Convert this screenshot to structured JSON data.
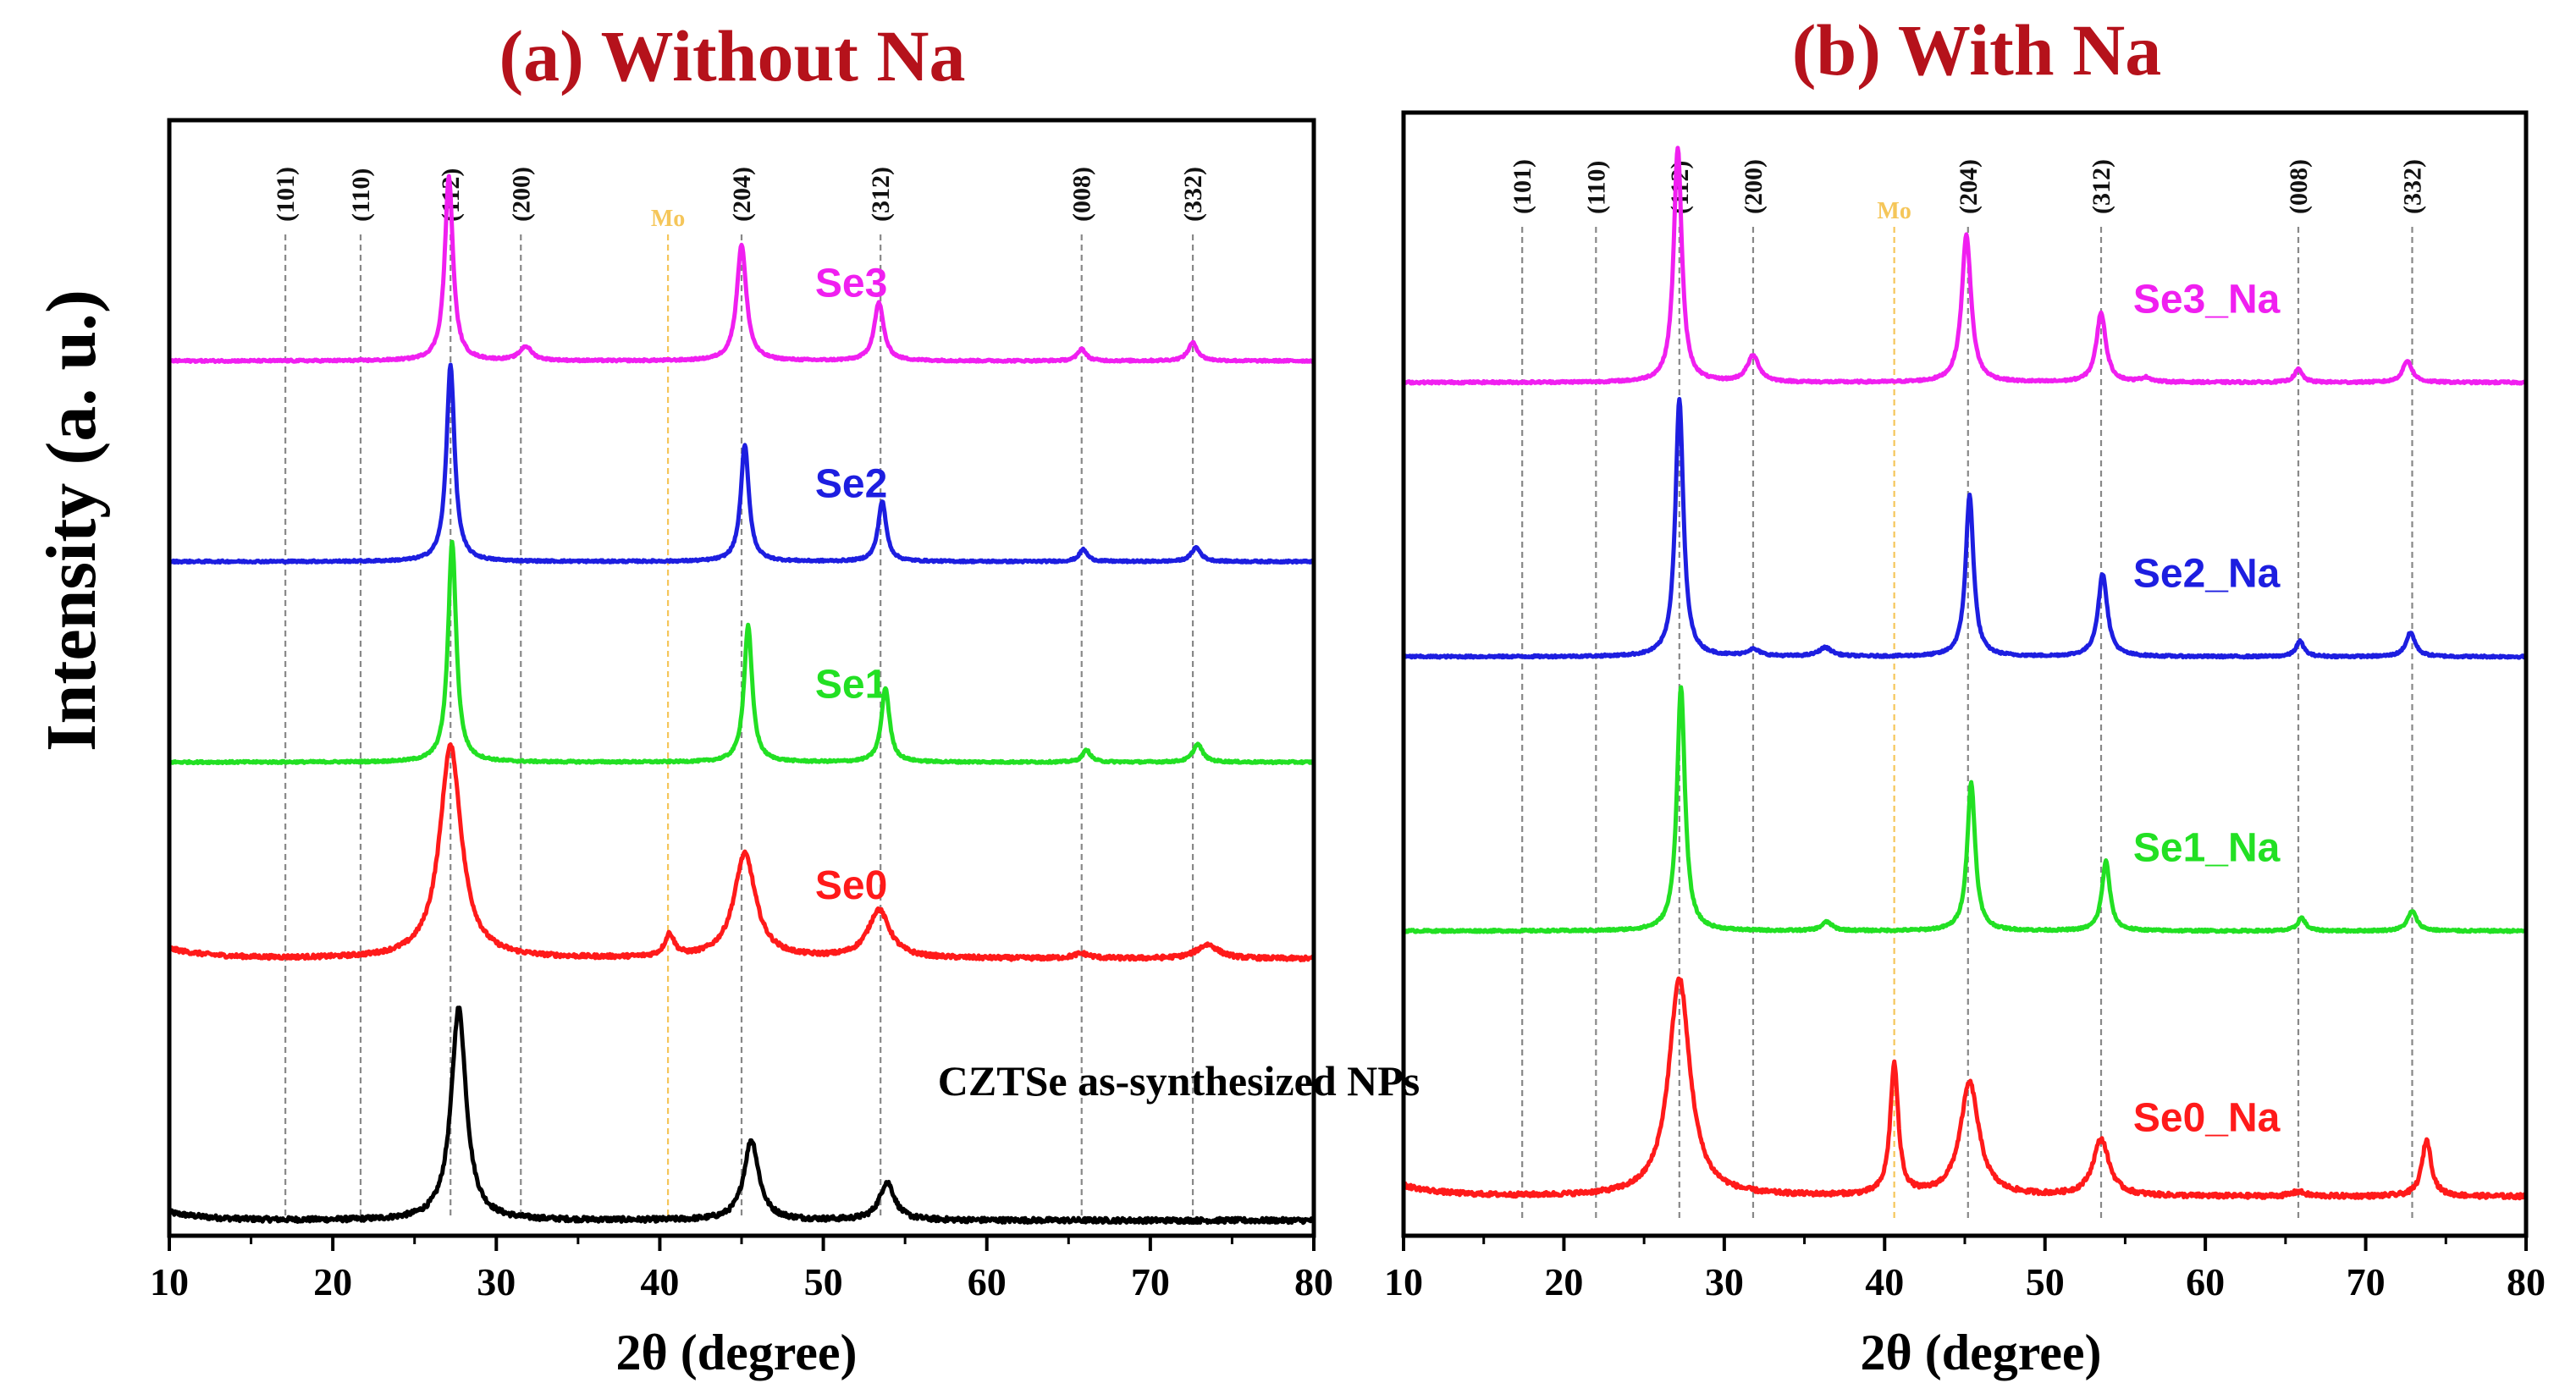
{
  "figure": {
    "ylabel": "Intensity (a. u.)"
  },
  "chart_data": [
    {
      "type": "line",
      "title": "(a) Without Na",
      "xlabel": "2θ (degree)",
      "ylabel": "Intensity (a. u.)",
      "xlim": [
        10,
        80
      ],
      "xticks": [
        "10",
        "20",
        "30",
        "40",
        "50",
        "60",
        "70",
        "80"
      ],
      "reference_lines": [
        {
          "label": "(101)",
          "x": 17.1,
          "color": "#888888"
        },
        {
          "label": "(110)",
          "x": 21.7,
          "color": "#888888"
        },
        {
          "label": "(112)",
          "x": 27.2,
          "color": "#888888"
        },
        {
          "label": "(200)",
          "x": 31.5,
          "color": "#888888"
        },
        {
          "label": "Mo",
          "x": 40.5,
          "color": "#f5c65a"
        },
        {
          "label": "(204)",
          "x": 45.0,
          "color": "#888888"
        },
        {
          "label": "(312)",
          "x": 53.5,
          "color": "#888888"
        },
        {
          "label": "(008)",
          "x": 65.8,
          "color": "#888888"
        },
        {
          "label": "(332)",
          "x": 72.6,
          "color": "#888888"
        }
      ],
      "series": [
        {
          "name": "CZTSe as-synthesized NPs",
          "color": "#000000",
          "offset": 0,
          "baseline": 0.08,
          "noise": 0.06,
          "label_x": 57,
          "peaks": [
            {
              "x": 27.7,
              "h": 5.3,
              "w": 0.55
            },
            {
              "x": 45.6,
              "h": 2.0,
              "w": 0.55
            },
            {
              "x": 53.9,
              "h": 0.95,
              "w": 0.55
            }
          ]
        },
        {
          "name": "Se0",
          "color": "#ff1a1a",
          "offset": 6.5,
          "baseline": 0.1,
          "noise": 0.05,
          "label_x": 49.5,
          "peaks": [
            {
              "x": 27.2,
              "h": 5.3,
              "w": 0.8
            },
            {
              "x": 40.6,
              "h": 0.55,
              "w": 0.35
            },
            {
              "x": 45.2,
              "h": 2.6,
              "w": 0.8
            },
            {
              "x": 53.4,
              "h": 1.2,
              "w": 0.8
            },
            {
              "x": 65.8,
              "h": 0.12,
              "w": 0.6
            },
            {
              "x": 73.5,
              "h": 0.35,
              "w": 0.8
            }
          ]
        },
        {
          "name": "Se1",
          "color": "#22e023",
          "offset": 11.5,
          "baseline": 0.0,
          "noise": 0.025,
          "label_x": 49.5,
          "peaks": [
            {
              "x": 27.3,
              "h": 5.5,
              "w": 0.3
            },
            {
              "x": 45.4,
              "h": 3.4,
              "w": 0.3
            },
            {
              "x": 53.8,
              "h": 1.85,
              "w": 0.3
            },
            {
              "x": 66.1,
              "h": 0.3,
              "w": 0.3
            },
            {
              "x": 72.9,
              "h": 0.45,
              "w": 0.35
            }
          ]
        },
        {
          "name": "Se2",
          "color": "#1d1ee0",
          "offset": 16.5,
          "baseline": 0.0,
          "noise": 0.025,
          "label_x": 49.5,
          "peaks": [
            {
              "x": 27.2,
              "h": 4.9,
              "w": 0.3
            },
            {
              "x": 45.2,
              "h": 2.9,
              "w": 0.3
            },
            {
              "x": 53.6,
              "h": 1.5,
              "w": 0.3
            },
            {
              "x": 65.9,
              "h": 0.3,
              "w": 0.3
            },
            {
              "x": 72.8,
              "h": 0.35,
              "w": 0.35
            }
          ]
        },
        {
          "name": "Se3",
          "color": "#f01ff0",
          "offset": 21.5,
          "baseline": 0.0,
          "noise": 0.025,
          "label_x": 49.5,
          "peaks": [
            {
              "x": 27.1,
              "h": 4.6,
              "w": 0.3
            },
            {
              "x": 31.8,
              "h": 0.35,
              "w": 0.45
            },
            {
              "x": 45.0,
              "h": 2.9,
              "w": 0.35
            },
            {
              "x": 53.4,
              "h": 1.45,
              "w": 0.35
            },
            {
              "x": 65.8,
              "h": 0.3,
              "w": 0.3
            },
            {
              "x": 72.6,
              "h": 0.45,
              "w": 0.35
            }
          ]
        }
      ],
      "ylim": [
        -0.3,
        27.5
      ]
    },
    {
      "type": "line",
      "title": "(b) With Na",
      "xlabel": "2θ (degree)",
      "ylabel": "Intensity (a. u.)",
      "xlim": [
        10,
        80
      ],
      "xticks": [
        "10",
        "20",
        "30",
        "40",
        "50",
        "60",
        "70",
        "80"
      ],
      "reference_lines": [
        {
          "label": "(101)",
          "x": 17.4,
          "color": "#888888"
        },
        {
          "label": "(110)",
          "x": 22.0,
          "color": "#888888"
        },
        {
          "label": "(112)",
          "x": 27.2,
          "color": "#888888"
        },
        {
          "label": "(200)",
          "x": 31.8,
          "color": "#888888"
        },
        {
          "label": "Mo",
          "x": 40.6,
          "color": "#f5c65a"
        },
        {
          "label": "(204)",
          "x": 45.2,
          "color": "#888888"
        },
        {
          "label": "(312)",
          "x": 53.5,
          "color": "#888888"
        },
        {
          "label": "(008)",
          "x": 65.8,
          "color": "#888888"
        },
        {
          "label": "(332)",
          "x": 72.9,
          "color": "#888888"
        }
      ],
      "series": [
        {
          "name": "Se0_Na",
          "color": "#ff1a1a",
          "offset": 0.8,
          "baseline": 0.1,
          "noise": 0.05,
          "label_x": 55.5,
          "peaks": [
            {
              "x": 27.2,
              "h": 5.0,
              "w": 0.8
            },
            {
              "x": 40.6,
              "h": 3.0,
              "w": 0.3
            },
            {
              "x": 45.3,
              "h": 2.6,
              "w": 0.7
            },
            {
              "x": 53.5,
              "h": 1.3,
              "w": 0.6
            },
            {
              "x": 65.8,
              "h": 0.1,
              "w": 0.5
            },
            {
              "x": 73.8,
              "h": 1.3,
              "w": 0.35
            }
          ]
        },
        {
          "name": "Se1_Na",
          "color": "#22e023",
          "offset": 7.0,
          "baseline": 0.0,
          "noise": 0.025,
          "label_x": 55.5,
          "peaks": [
            {
              "x": 27.3,
              "h": 5.6,
              "w": 0.3
            },
            {
              "x": 36.4,
              "h": 0.2,
              "w": 0.4
            },
            {
              "x": 45.4,
              "h": 3.4,
              "w": 0.3
            },
            {
              "x": 53.8,
              "h": 1.6,
              "w": 0.3
            },
            {
              "x": 66.0,
              "h": 0.3,
              "w": 0.3
            },
            {
              "x": 72.9,
              "h": 0.45,
              "w": 0.35
            }
          ]
        },
        {
          "name": "Se2_Na",
          "color": "#1d1ee0",
          "offset": 13.3,
          "baseline": 0.0,
          "noise": 0.025,
          "label_x": 55.5,
          "peaks": [
            {
              "x": 27.2,
              "h": 5.9,
              "w": 0.3
            },
            {
              "x": 31.8,
              "h": 0.15,
              "w": 0.5
            },
            {
              "x": 36.3,
              "h": 0.2,
              "w": 0.5
            },
            {
              "x": 45.3,
              "h": 3.7,
              "w": 0.3
            },
            {
              "x": 53.6,
              "h": 1.9,
              "w": 0.35
            },
            {
              "x": 65.9,
              "h": 0.35,
              "w": 0.3
            },
            {
              "x": 72.8,
              "h": 0.55,
              "w": 0.35
            }
          ]
        },
        {
          "name": "Se3_Na",
          "color": "#f01ff0",
          "offset": 19.6,
          "baseline": 0.0,
          "noise": 0.025,
          "label_x": 55.5,
          "peaks": [
            {
              "x": 27.1,
              "h": 5.4,
              "w": 0.3
            },
            {
              "x": 31.8,
              "h": 0.6,
              "w": 0.45
            },
            {
              "x": 45.1,
              "h": 3.4,
              "w": 0.35
            },
            {
              "x": 53.5,
              "h": 1.6,
              "w": 0.35
            },
            {
              "x": 56.3,
              "h": 0.1,
              "w": 0.4
            },
            {
              "x": 65.8,
              "h": 0.3,
              "w": 0.3
            },
            {
              "x": 72.6,
              "h": 0.5,
              "w": 0.35
            }
          ]
        }
      ],
      "ylim": [
        0.0,
        25.8
      ]
    }
  ]
}
